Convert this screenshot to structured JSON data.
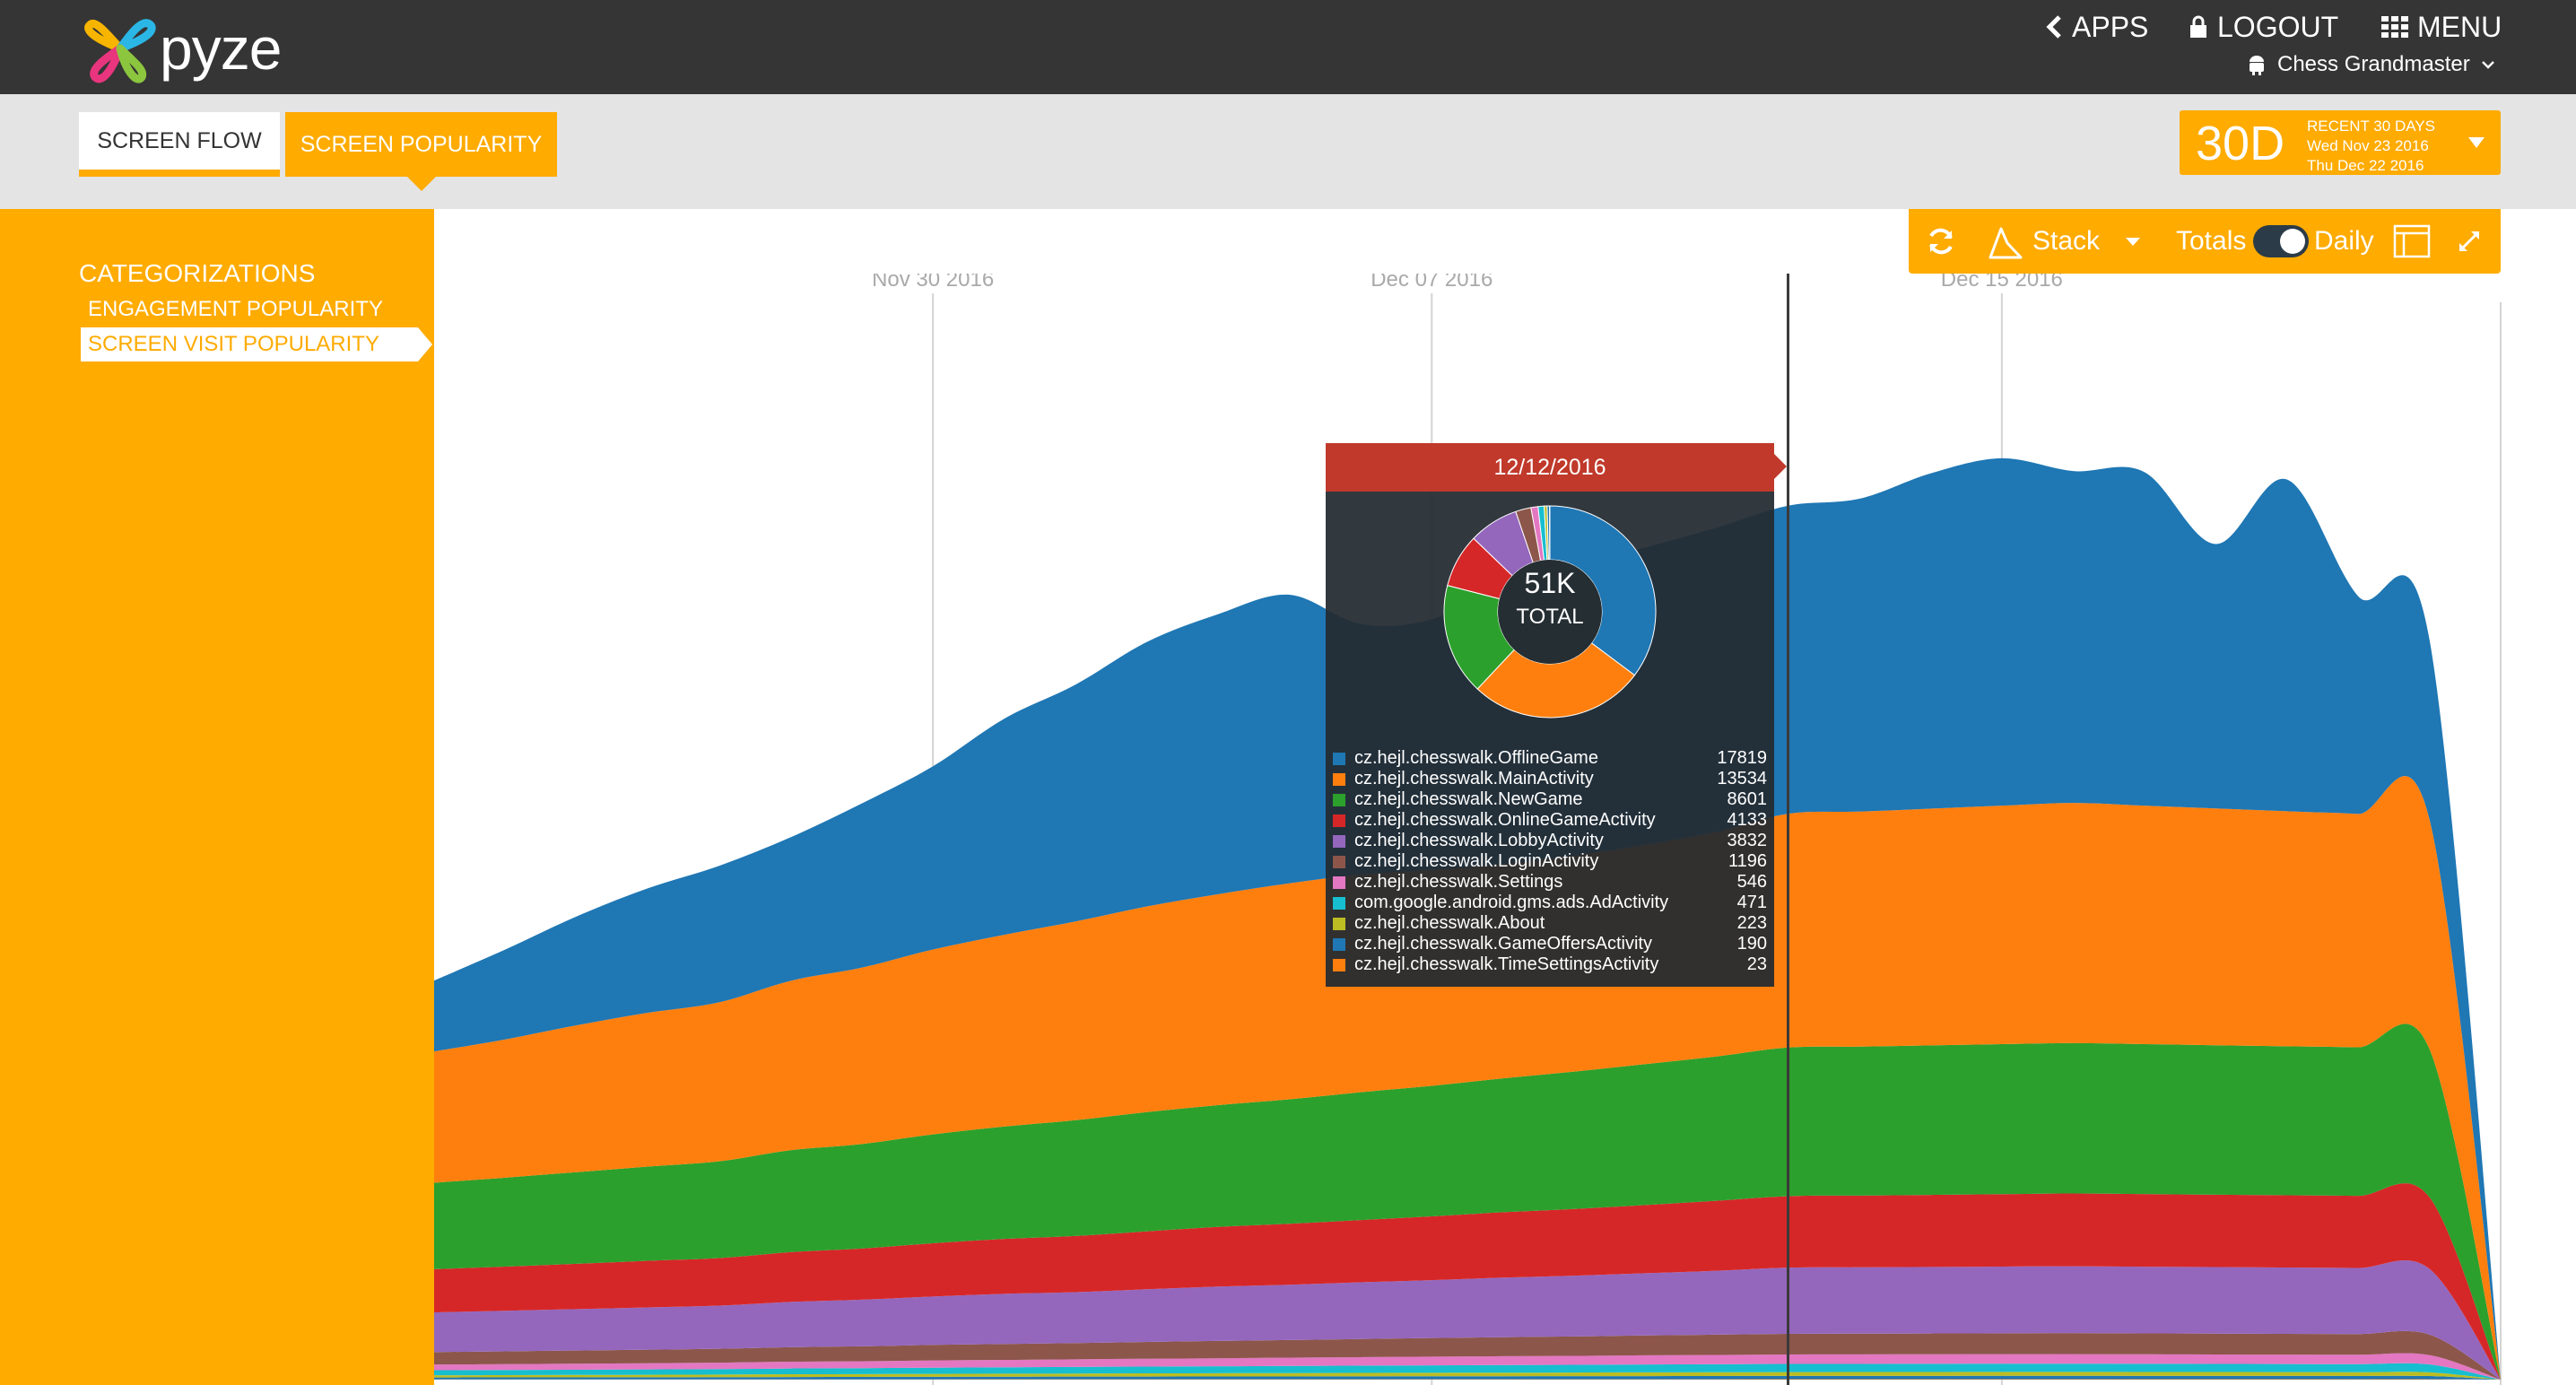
{
  "header": {
    "logo_text": "pyze",
    "nav": {
      "apps": "APPS",
      "logout": "LOGOUT",
      "menu": "MENU"
    },
    "app_name": "Chess Grandmaster"
  },
  "tabs": {
    "screen_flow": "SCREEN FLOW",
    "screen_popularity": "SCREEN POPULARITY"
  },
  "date_range": {
    "short": "30D",
    "line1": "RECENT 30 DAYS",
    "line2": "Wed Nov 23 2016",
    "line3": "Thu Dec 22 2016"
  },
  "sidebar": {
    "title": "CATEGORIZATIONS",
    "items": [
      "ENGAGEMENT POPULARITY",
      "SCREEN VISIT POPULARITY"
    ]
  },
  "toolbar": {
    "stack": "Stack",
    "totals": "Totals",
    "daily": "Daily",
    "mode": "Daily"
  },
  "colors": {
    "accent": "#ffab00",
    "header": "#353535",
    "tooltip_head": "#c0392b"
  },
  "chart_data": {
    "type": "area",
    "stacked": true,
    "x_start": "2016-11-23",
    "x": [
      "2016-11-23",
      "2016-11-24",
      "2016-11-25",
      "2016-11-26",
      "2016-11-27",
      "2016-11-28",
      "2016-11-29",
      "2016-11-30",
      "2016-12-01",
      "2016-12-02",
      "2016-12-03",
      "2016-12-04",
      "2016-12-05",
      "2016-12-06",
      "2016-12-07",
      "2016-12-08",
      "2016-12-09",
      "2016-12-10",
      "2016-12-11",
      "2016-12-12",
      "2016-12-13",
      "2016-12-14",
      "2016-12-15",
      "2016-12-16",
      "2016-12-17",
      "2016-12-18",
      "2016-12-19",
      "2016-12-20",
      "2016-12-21",
      "2016-12-22"
    ],
    "x_ticks": [
      "Nov 30 2016",
      "Dec 07 2016",
      "Dec 15 2016"
    ],
    "hover_index": 19,
    "ylim": [
      0,
      64000
    ],
    "series": [
      {
        "name": "cz.hejl.chesswalk.TimeSettingsActivity",
        "color": "#ff7f0e",
        "values": [
          12,
          12,
          13,
          13,
          14,
          15,
          15,
          16,
          17,
          18,
          18,
          19,
          19,
          20,
          20,
          21,
          21,
          22,
          22,
          23,
          23,
          23,
          24,
          24,
          23,
          23,
          23,
          22,
          21,
          0
        ]
      },
      {
        "name": "cz.hejl.chesswalk.GameOffersActivity",
        "color": "#1f77b4",
        "values": [
          110,
          115,
          120,
          122,
          128,
          135,
          140,
          145,
          150,
          155,
          160,
          162,
          165,
          170,
          172,
          175,
          178,
          182,
          186,
          190,
          192,
          193,
          195,
          196,
          194,
          192,
          190,
          188,
          185,
          0
        ]
      },
      {
        "name": "cz.hejl.chesswalk.About",
        "color": "#bcbd22",
        "values": [
          130,
          135,
          140,
          145,
          150,
          160,
          165,
          170,
          175,
          180,
          185,
          190,
          195,
          200,
          205,
          208,
          212,
          216,
          220,
          223,
          224,
          225,
          226,
          227,
          225,
          223,
          221,
          219,
          215,
          0
        ]
      },
      {
        "name": "com.google.android.gms.ads.AdActivity",
        "color": "#17becf",
        "values": [
          290,
          295,
          300,
          310,
          320,
          335,
          345,
          360,
          370,
          380,
          390,
          400,
          410,
          420,
          430,
          440,
          445,
          455,
          462,
          471,
          472,
          473,
          474,
          475,
          473,
          470,
          468,
          465,
          460,
          0
        ]
      },
      {
        "name": "cz.hejl.chesswalk.Settings",
        "color": "#e377c2",
        "values": [
          330,
          340,
          350,
          360,
          370,
          390,
          400,
          420,
          430,
          440,
          455,
          465,
          480,
          490,
          500,
          510,
          520,
          530,
          540,
          546,
          548,
          550,
          552,
          554,
          550,
          548,
          546,
          544,
          540,
          0
        ]
      },
      {
        "name": "cz.hejl.chesswalk.LoginActivity",
        "color": "#8c564b",
        "values": [
          720,
          740,
          760,
          780,
          800,
          840,
          860,
          900,
          920,
          940,
          970,
          1000,
          1020,
          1050,
          1080,
          1100,
          1120,
          1150,
          1170,
          1196,
          1200,
          1205,
          1210,
          1215,
          1210,
          1205,
          1200,
          1195,
          1190,
          0
        ]
      },
      {
        "name": "cz.hejl.chesswalk.LobbyActivity",
        "color": "#9467bd",
        "values": [
          2300,
          2350,
          2400,
          2450,
          2500,
          2620,
          2700,
          2800,
          2900,
          2950,
          3050,
          3150,
          3200,
          3280,
          3350,
          3450,
          3520,
          3600,
          3700,
          3832,
          3840,
          3850,
          3860,
          3870,
          3860,
          3850,
          3840,
          3830,
          3800,
          0
        ]
      },
      {
        "name": "cz.hejl.chesswalk.OnlineGameActivity",
        "color": "#d62728",
        "values": [
          2500,
          2550,
          2620,
          2700,
          2750,
          2880,
          2960,
          3080,
          3180,
          3250,
          3350,
          3450,
          3530,
          3600,
          3690,
          3780,
          3860,
          3950,
          4050,
          4133,
          4150,
          4170,
          4190,
          4210,
          4200,
          4190,
          4180,
          4170,
          4150,
          0
        ]
      },
      {
        "name": "cz.hejl.chesswalk.NewGame",
        "color": "#2ca02c",
        "values": [
          5000,
          5150,
          5300,
          5450,
          5600,
          5900,
          6050,
          6300,
          6500,
          6700,
          6900,
          7050,
          7200,
          7400,
          7550,
          7750,
          7950,
          8150,
          8350,
          8601,
          8620,
          8650,
          8680,
          8700,
          8680,
          8650,
          8620,
          8600,
          8580,
          0
        ]
      },
      {
        "name": "cz.hejl.chesswalk.MainActivity",
        "color": "#ff7f0e",
        "values": [
          7600,
          8000,
          8500,
          8900,
          9200,
          9800,
          10200,
          10700,
          11100,
          11500,
          11900,
          12200,
          12500,
          12600,
          12500,
          12400,
          12500,
          12700,
          13000,
          13534,
          13600,
          13700,
          13800,
          13900,
          13800,
          13700,
          13600,
          13500,
          13300,
          0
        ]
      },
      {
        "name": "cz.hejl.chesswalk.OfflineGame",
        "color": "#1f77b4",
        "values": [
          4100,
          5200,
          6300,
          7200,
          7900,
          8300,
          9500,
          10600,
          12500,
          13700,
          15300,
          16200,
          16700,
          14500,
          14500,
          16300,
          16800,
          17200,
          17600,
          17819,
          18100,
          19400,
          20100,
          19200,
          19300,
          15300,
          19200,
          12600,
          10400,
          0
        ]
      }
    ]
  },
  "tooltip": {
    "date": "12/12/2016",
    "total": "51K",
    "total_label": "TOTAL",
    "rows": [
      {
        "name": "cz.hejl.chesswalk.OfflineGame",
        "value": "17819",
        "color": "#1f77b4"
      },
      {
        "name": "cz.hejl.chesswalk.MainActivity",
        "value": "13534",
        "color": "#ff7f0e"
      },
      {
        "name": "cz.hejl.chesswalk.NewGame",
        "value": "8601",
        "color": "#2ca02c"
      },
      {
        "name": "cz.hejl.chesswalk.OnlineGameActivity",
        "value": "4133",
        "color": "#d62728"
      },
      {
        "name": "cz.hejl.chesswalk.LobbyActivity",
        "value": "3832",
        "color": "#9467bd"
      },
      {
        "name": "cz.hejl.chesswalk.LoginActivity",
        "value": "1196",
        "color": "#8c564b"
      },
      {
        "name": "cz.hejl.chesswalk.Settings",
        "value": "546",
        "color": "#e377c2"
      },
      {
        "name": "com.google.android.gms.ads.AdActivity",
        "value": "471",
        "color": "#17becf"
      },
      {
        "name": "cz.hejl.chesswalk.About",
        "value": "223",
        "color": "#bcbd22"
      },
      {
        "name": "cz.hejl.chesswalk.GameOffersActivity",
        "value": "190",
        "color": "#1f77b4"
      },
      {
        "name": "cz.hejl.chesswalk.TimeSettingsActivity",
        "value": "23",
        "color": "#ff7f0e"
      }
    ]
  }
}
